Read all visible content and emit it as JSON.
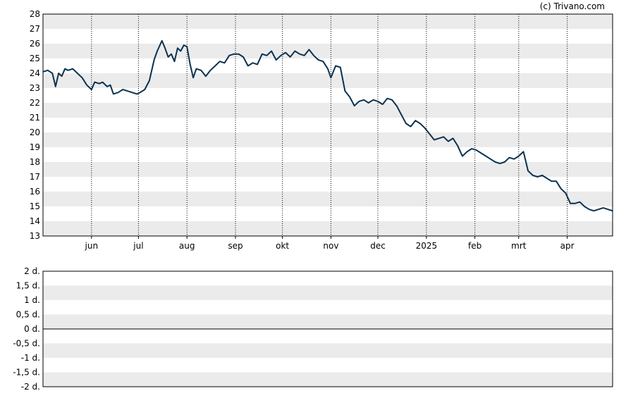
{
  "credit": "(c) Trivano.com",
  "colors": {
    "line": "#0b3250",
    "band": "#ebebeb",
    "frame": "#000000",
    "vgrid": "#000000"
  },
  "chart_data": [
    {
      "type": "line",
      "title": "",
      "xlabel": "",
      "ylabel": "",
      "ylim": [
        13,
        28
      ],
      "yticks": [
        "13",
        "14",
        "15",
        "16",
        "17",
        "18",
        "19",
        "20",
        "21",
        "22",
        "23",
        "24",
        "25",
        "26",
        "27",
        "28"
      ],
      "xticks": [
        "jun",
        "jul",
        "aug",
        "sep",
        "okt",
        "nov",
        "dec",
        "2025",
        "feb",
        "mrt",
        "apr"
      ],
      "grid": "alternating horizontal bands, dotted vertical month lines",
      "x_range": [
        "2024-05-01",
        "2025-04-30"
      ],
      "series": [
        {
          "x": [
            "2024-05-01",
            "2024-05-04",
            "2024-05-07",
            "2024-05-09",
            "2024-05-11",
            "2024-05-13",
            "2024-05-15",
            "2024-05-17",
            "2024-05-20",
            "2024-05-23",
            "2024-05-26",
            "2024-05-29",
            "2024-06-01",
            "2024-06-03",
            "2024-06-06",
            "2024-06-08",
            "2024-06-11",
            "2024-06-13",
            "2024-06-15",
            "2024-06-18",
            "2024-06-21",
            "2024-06-24",
            "2024-06-27",
            "2024-06-30",
            "2024-07-02",
            "2024-07-05",
            "2024-07-08",
            "2024-07-11",
            "2024-07-13",
            "2024-07-16",
            "2024-07-18",
            "2024-07-20",
            "2024-07-22",
            "2024-07-24",
            "2024-07-26",
            "2024-07-28",
            "2024-07-30",
            "2024-08-01",
            "2024-08-03",
            "2024-08-05",
            "2024-08-07",
            "2024-08-10",
            "2024-08-13",
            "2024-08-16",
            "2024-08-19",
            "2024-08-22",
            "2024-08-25",
            "2024-08-28",
            "2024-08-31",
            "2024-09-03",
            "2024-09-06",
            "2024-09-09",
            "2024-09-12",
            "2024-09-15",
            "2024-09-18",
            "2024-09-21",
            "2024-09-24",
            "2024-09-27",
            "2024-09-30",
            "2024-10-03",
            "2024-10-06",
            "2024-10-09",
            "2024-10-12",
            "2024-10-15",
            "2024-10-18",
            "2024-10-21",
            "2024-10-24",
            "2024-10-27",
            "2024-10-30",
            "2024-11-01",
            "2024-11-04",
            "2024-11-07",
            "2024-11-10",
            "2024-11-13",
            "2024-11-16",
            "2024-11-19",
            "2024-11-22",
            "2024-11-25",
            "2024-11-28",
            "2024-12-01",
            "2024-12-04",
            "2024-12-07",
            "2024-12-10",
            "2024-12-13",
            "2024-12-16",
            "2024-12-19",
            "2024-12-22",
            "2024-12-25",
            "2024-12-28",
            "2024-12-31",
            "2025-01-03",
            "2025-01-06",
            "2025-01-09",
            "2025-01-12",
            "2025-01-15",
            "2025-01-18",
            "2025-01-21",
            "2025-01-24",
            "2025-01-27",
            "2025-01-30",
            "2025-02-02",
            "2025-02-05",
            "2025-02-08",
            "2025-02-11",
            "2025-02-14",
            "2025-02-17",
            "2025-02-20",
            "2025-02-23",
            "2025-02-26",
            "2025-03-01",
            "2025-03-04",
            "2025-03-07",
            "2025-03-10",
            "2025-03-13",
            "2025-03-16",
            "2025-03-19",
            "2025-03-22",
            "2025-03-25",
            "2025-03-28",
            "2025-03-31",
            "2025-04-03",
            "2025-04-06",
            "2025-04-09",
            "2025-04-12",
            "2025-04-15",
            "2025-04-18",
            "2025-04-21",
            "2025-04-24",
            "2025-04-27",
            "2025-04-30"
          ],
          "y": [
            24.1,
            24.2,
            24.0,
            23.1,
            24.0,
            23.8,
            24.3,
            24.2,
            24.3,
            24.0,
            23.7,
            23.2,
            22.9,
            23.4,
            23.3,
            23.4,
            23.1,
            23.2,
            22.6,
            22.7,
            22.9,
            22.8,
            22.7,
            22.6,
            22.7,
            22.9,
            23.5,
            24.9,
            25.5,
            26.2,
            25.7,
            25.1,
            25.3,
            24.8,
            25.7,
            25.5,
            25.9,
            25.8,
            24.6,
            23.7,
            24.3,
            24.2,
            23.8,
            24.2,
            24.5,
            24.8,
            24.7,
            25.2,
            25.3,
            25.3,
            25.1,
            24.5,
            24.7,
            24.6,
            25.3,
            25.2,
            25.5,
            24.9,
            25.2,
            25.4,
            25.1,
            25.5,
            25.3,
            25.2,
            25.6,
            25.2,
            24.9,
            24.8,
            24.3,
            23.7,
            24.5,
            24.4,
            22.8,
            22.4,
            21.8,
            22.1,
            22.2,
            22.0,
            22.2,
            22.1,
            21.9,
            22.3,
            22.2,
            21.8,
            21.2,
            20.6,
            20.4,
            20.8,
            20.6,
            20.3,
            19.9,
            19.5,
            19.6,
            19.7,
            19.4,
            19.6,
            19.1,
            18.4,
            18.7,
            18.9,
            18.8,
            18.6,
            18.4,
            18.2,
            18.0,
            17.9,
            18.0,
            18.3,
            18.2,
            18.4,
            18.7,
            17.4,
            17.1,
            17.0,
            17.1,
            16.9,
            16.7,
            16.7,
            16.2,
            15.9,
            15.2,
            15.2,
            15.3,
            15.0,
            14.8,
            14.7,
            14.8,
            14.9,
            14.8,
            14.7
          ]
        }
      ]
    },
    {
      "type": "bar",
      "title": "",
      "xlabel": "",
      "ylabel": "",
      "ylim": [
        -2,
        2
      ],
      "yticks": [
        "2 d.",
        "1,5 d.",
        "1 d.",
        "0,5 d.",
        "0 d.",
        "-0,5 d.",
        "-1 d.",
        "-1,5 d.",
        "-2 d."
      ],
      "grid": "alternating horizontal bands, zero baseline",
      "values": []
    }
  ]
}
